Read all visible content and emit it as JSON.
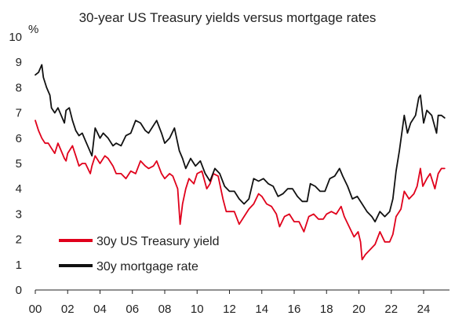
{
  "chart_data": {
    "type": "line",
    "title": "30-year US Treasury yields versus mortgage rates",
    "y_unit": "%",
    "xlabel": "",
    "ylabel": "",
    "xlim": [
      2000,
      2025.6
    ],
    "ylim": [
      0,
      10
    ],
    "x_ticks": [
      {
        "value": 2000,
        "label": "00"
      },
      {
        "value": 2002,
        "label": "02"
      },
      {
        "value": 2004,
        "label": "04"
      },
      {
        "value": 2006,
        "label": "06"
      },
      {
        "value": 2008,
        "label": "08"
      },
      {
        "value": 2010,
        "label": "10"
      },
      {
        "value": 2012,
        "label": "12"
      },
      {
        "value": 2014,
        "label": "14"
      },
      {
        "value": 2016,
        "label": "16"
      },
      {
        "value": 2018,
        "label": "18"
      },
      {
        "value": 2020,
        "label": "20"
      },
      {
        "value": 2022,
        "label": "22"
      },
      {
        "value": 2024,
        "label": "24"
      }
    ],
    "y_ticks": [
      "0",
      "1",
      "2",
      "3",
      "4",
      "5",
      "6",
      "7",
      "8",
      "9",
      "10"
    ],
    "grid": false,
    "legend": {
      "position": "bottom-left"
    },
    "series": [
      {
        "name": "30y US Treasury yield",
        "color": "#e0001b",
        "x": [
          2000.0,
          2000.2,
          2000.4,
          2000.6,
          2000.8,
          2001.0,
          2001.2,
          2001.4,
          2001.6,
          2001.8,
          2001.9,
          2002.0,
          2002.3,
          2002.5,
          2002.7,
          2002.9,
          2003.1,
          2003.4,
          2003.5,
          2003.7,
          2004.0,
          2004.3,
          2004.5,
          2004.8,
          2005.0,
          2005.3,
          2005.6,
          2005.9,
          2006.2,
          2006.5,
          2006.8,
          2007.0,
          2007.3,
          2007.5,
          2007.8,
          2008.0,
          2008.3,
          2008.5,
          2008.8,
          2008.95,
          2009.1,
          2009.3,
          2009.5,
          2009.8,
          2010.0,
          2010.3,
          2010.6,
          2010.8,
          2011.0,
          2011.3,
          2011.6,
          2011.8,
          2012.0,
          2012.3,
          2012.6,
          2012.9,
          2013.2,
          2013.5,
          2013.8,
          2014.0,
          2014.3,
          2014.6,
          2014.9,
          2015.1,
          2015.4,
          2015.7,
          2016.0,
          2016.3,
          2016.6,
          2016.9,
          2017.2,
          2017.5,
          2017.8,
          2018.0,
          2018.3,
          2018.6,
          2018.9,
          2019.1,
          2019.4,
          2019.7,
          2019.95,
          2020.1,
          2020.2,
          2020.4,
          2020.7,
          2021.0,
          2021.3,
          2021.6,
          2021.9,
          2022.1,
          2022.3,
          2022.6,
          2022.8,
          2023.1,
          2023.4,
          2023.6,
          2023.8,
          2023.95,
          2024.2,
          2024.4,
          2024.7,
          2024.9,
          2025.1,
          2025.3
        ],
        "values": [
          6.7,
          6.3,
          6.0,
          5.8,
          5.8,
          5.6,
          5.4,
          5.8,
          5.5,
          5.2,
          5.1,
          5.4,
          5.7,
          5.3,
          4.9,
          5.0,
          5.0,
          4.6,
          4.9,
          5.3,
          5.0,
          5.3,
          5.2,
          4.9,
          4.6,
          4.6,
          4.4,
          4.7,
          4.6,
          5.1,
          4.9,
          4.8,
          4.9,
          5.1,
          4.6,
          4.4,
          4.6,
          4.5,
          4.0,
          2.6,
          3.4,
          4.0,
          4.4,
          4.2,
          4.6,
          4.7,
          4.0,
          4.2,
          4.6,
          4.5,
          3.6,
          3.1,
          3.1,
          3.1,
          2.6,
          2.9,
          3.2,
          3.4,
          3.8,
          3.7,
          3.4,
          3.3,
          3.0,
          2.5,
          2.9,
          3.0,
          2.7,
          2.7,
          2.3,
          2.9,
          3.0,
          2.8,
          2.8,
          3.0,
          3.1,
          3.0,
          3.3,
          2.9,
          2.5,
          2.1,
          2.3,
          1.9,
          1.2,
          1.4,
          1.6,
          1.8,
          2.3,
          1.9,
          1.9,
          2.2,
          2.9,
          3.2,
          3.9,
          3.6,
          3.8,
          4.1,
          4.8,
          4.1,
          4.4,
          4.6,
          4.0,
          4.6,
          4.8,
          4.8
        ]
      },
      {
        "name": "30y mortgage rate",
        "color": "#111111",
        "x": [
          2000.0,
          2000.2,
          2000.4,
          2000.5,
          2000.7,
          2000.9,
          2001.0,
          2001.2,
          2001.4,
          2001.6,
          2001.8,
          2001.9,
          2002.1,
          2002.3,
          2002.5,
          2002.7,
          2002.9,
          2003.1,
          2003.3,
          2003.5,
          2003.7,
          2004.0,
          2004.2,
          2004.5,
          2004.8,
          2005.0,
          2005.3,
          2005.6,
          2005.9,
          2006.2,
          2006.5,
          2006.8,
          2007.0,
          2007.3,
          2007.5,
          2007.8,
          2008.0,
          2008.3,
          2008.6,
          2008.9,
          2009.1,
          2009.3,
          2009.6,
          2009.9,
          2010.2,
          2010.5,
          2010.8,
          2011.1,
          2011.4,
          2011.7,
          2012.0,
          2012.3,
          2012.6,
          2012.9,
          2013.2,
          2013.5,
          2013.8,
          2014.1,
          2014.4,
          2014.7,
          2015.0,
          2015.3,
          2015.6,
          2015.9,
          2016.2,
          2016.5,
          2016.8,
          2017.0,
          2017.3,
          2017.6,
          2017.9,
          2018.2,
          2018.5,
          2018.8,
          2019.0,
          2019.3,
          2019.6,
          2019.9,
          2020.2,
          2020.5,
          2020.8,
          2021.0,
          2021.3,
          2021.6,
          2021.9,
          2022.1,
          2022.3,
          2022.5,
          2022.8,
          2023.0,
          2023.2,
          2023.5,
          2023.7,
          2023.8,
          2024.0,
          2024.2,
          2024.5,
          2024.8,
          2024.9,
          2025.1,
          2025.3
        ],
        "values": [
          8.5,
          8.6,
          8.9,
          8.4,
          8.0,
          7.7,
          7.2,
          7.0,
          7.2,
          6.9,
          6.6,
          7.1,
          7.2,
          6.7,
          6.3,
          6.1,
          6.2,
          5.9,
          5.6,
          5.3,
          6.4,
          6.0,
          6.2,
          6.0,
          5.7,
          5.8,
          5.7,
          6.1,
          6.2,
          6.7,
          6.6,
          6.3,
          6.2,
          6.5,
          6.7,
          6.2,
          5.8,
          6.0,
          6.4,
          5.5,
          5.2,
          4.8,
          5.2,
          4.9,
          5.1,
          4.6,
          4.3,
          4.8,
          4.6,
          4.1,
          3.9,
          3.9,
          3.6,
          3.4,
          3.6,
          4.4,
          4.3,
          4.4,
          4.2,
          4.1,
          3.7,
          3.8,
          4.0,
          4.0,
          3.7,
          3.5,
          3.5,
          4.2,
          4.1,
          3.9,
          3.9,
          4.4,
          4.5,
          4.8,
          4.5,
          4.1,
          3.6,
          3.7,
          3.4,
          3.1,
          2.9,
          2.7,
          3.1,
          2.9,
          3.1,
          3.6,
          4.7,
          5.5,
          6.9,
          6.2,
          6.6,
          6.9,
          7.6,
          7.7,
          6.6,
          7.1,
          6.9,
          6.2,
          6.9,
          6.9,
          6.8
        ]
      }
    ]
  }
}
